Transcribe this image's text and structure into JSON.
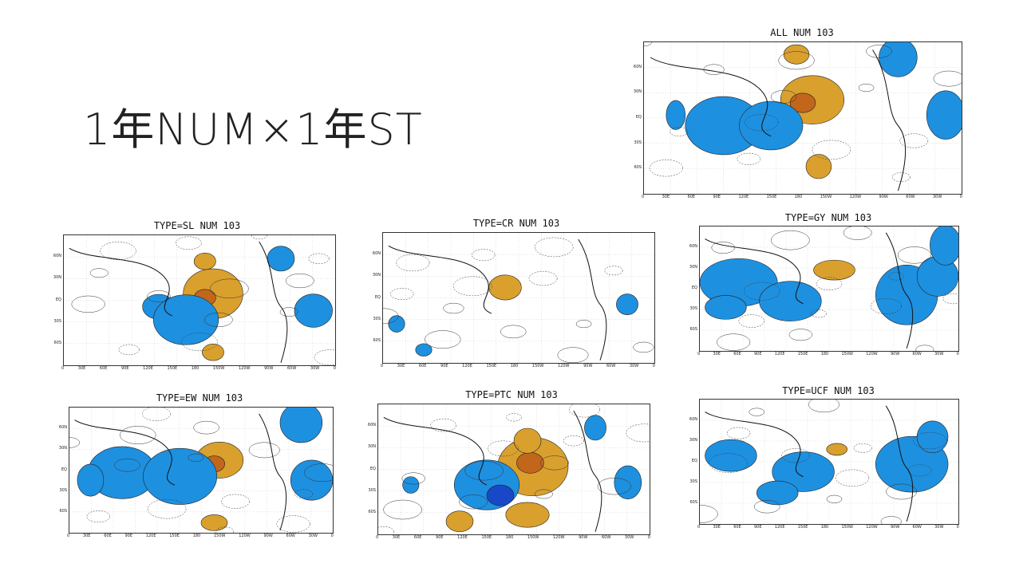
{
  "slide": {
    "title": "1年NUM×1年ST"
  },
  "colors": {
    "positive": "#d9a02e",
    "positive_core": "#c2661c",
    "negative": "#1e90e0",
    "negative_core": "#1848c8",
    "contour": "#333333"
  },
  "lat_labels": [
    "60N",
    "30N",
    "EQ",
    "30S",
    "60S"
  ],
  "lon_labels": [
    "0",
    "30E",
    "60E",
    "90E",
    "120E",
    "150E",
    "180",
    "150W",
    "120W",
    "90W",
    "60W",
    "30W",
    "0"
  ],
  "panels": [
    {
      "title": "ALL NUM 103"
    },
    {
      "title": "TYPE=SL NUM 103"
    },
    {
      "title": "TYPE=CR NUM 103"
    },
    {
      "title": "TYPE=GY NUM 103"
    },
    {
      "title": "TYPE=EW NUM 103"
    },
    {
      "title": "TYPE=PTC NUM 103"
    },
    {
      "title": "TYPE=UCF NUM 103"
    }
  ]
}
